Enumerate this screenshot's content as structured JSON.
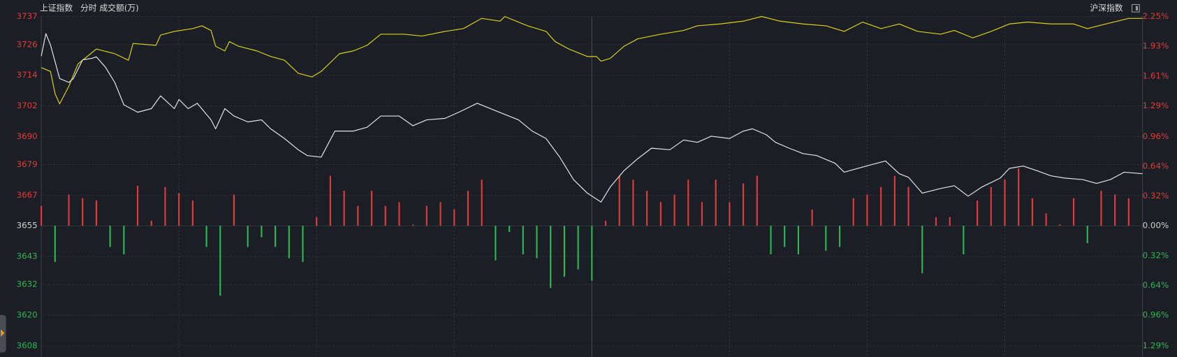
{
  "chart_data": {
    "type": "line",
    "title": "上证指数",
    "subtitle": "分时 成交额(万)",
    "index_label": "沪深指数",
    "xlim": [
      0,
      240
    ],
    "xgrid": [
      30,
      60,
      90,
      150,
      180,
      210
    ],
    "xmid": 120,
    "ylim": [
      3608,
      3737
    ],
    "yticks": [
      3737,
      3726,
      3714,
      3702,
      3690,
      3679,
      3667,
      3655,
      3643,
      3632,
      3620,
      3608
    ],
    "y2lim": [
      -1.29,
      2.25
    ],
    "y2ticks": [
      {
        "value": 2.25,
        "label": "2.25%"
      },
      {
        "value": 1.93,
        "label": "1.93%"
      },
      {
        "value": 1.61,
        "label": "1.61%"
      },
      {
        "value": 1.29,
        "label": "1.29%"
      },
      {
        "value": 0.96,
        "label": "0.96%"
      },
      {
        "value": 0.64,
        "label": "0.64%"
      },
      {
        "value": 0.32,
        "label": "0.32%"
      },
      {
        "value": 0,
        "label": "0.00%"
      },
      {
        "value": -0.32,
        "label": "0.32%"
      },
      {
        "value": -0.64,
        "label": "0.64%"
      },
      {
        "value": -0.96,
        "label": "0.96%"
      },
      {
        "value": -1.29,
        "label": "1.29%"
      }
    ],
    "up_color": "#e03b3b",
    "down_color": "#2fb552",
    "grid": true,
    "series": [
      {
        "color": "#e6e6e6",
        "x": [
          0,
          1,
          2,
          4,
          6,
          7,
          9,
          11,
          12,
          14,
          16,
          18,
          21,
          24,
          26,
          29,
          30,
          32,
          34,
          37,
          38,
          40,
          42,
          45,
          48,
          50,
          53,
          56,
          58,
          61,
          64,
          68,
          71,
          74,
          78,
          81,
          84,
          88,
          91,
          95,
          99,
          104,
          107,
          110,
          113,
          116,
          119,
          122,
          124,
          127,
          130,
          133,
          137,
          140,
          143,
          146,
          150,
          153,
          155,
          158,
          160,
          163,
          166,
          169,
          173,
          175,
          178,
          181,
          184,
          187,
          189,
          192,
          196,
          199,
          202,
          205,
          209,
          211,
          214,
          217,
          220,
          223,
          227,
          230,
          233,
          236,
          240
        ],
        "values": [
          3721.5,
          3730.3,
          3725.9,
          3712.7,
          3711.2,
          3712.7,
          3720.0,
          3720.6,
          3721.2,
          3717.1,
          3711.2,
          3702.4,
          3699.5,
          3700.9,
          3705.9,
          3700.9,
          3704.5,
          3700.9,
          3703.0,
          3696.5,
          3693.0,
          3700.9,
          3698.0,
          3695.7,
          3696.5,
          3693.0,
          3689.2,
          3684.8,
          3682.5,
          3681.9,
          3692.1,
          3692.1,
          3693.6,
          3698.0,
          3698.0,
          3694.2,
          3696.5,
          3697.1,
          3699.5,
          3703.0,
          3700.1,
          3696.5,
          3692.1,
          3689.2,
          3681.9,
          3673.1,
          3667.8,
          3664.3,
          3670.2,
          3676.6,
          3681.3,
          3685.4,
          3684.8,
          3688.6,
          3687.7,
          3690.1,
          3689.2,
          3692.1,
          3693.0,
          3690.7,
          3687.7,
          3685.4,
          3683.3,
          3682.5,
          3679.5,
          3676.0,
          3677.5,
          3679.0,
          3680.4,
          3675.4,
          3674.0,
          3667.8,
          3669.6,
          3670.7,
          3666.6,
          3670.2,
          3673.7,
          3677.5,
          3678.4,
          3676.6,
          3674.6,
          3673.7,
          3673.1,
          3671.6,
          3673.1,
          3676.0,
          3675.4
        ]
      },
      {
        "color": "#d9d21a",
        "axis": "y2",
        "x": [
          0,
          2,
          3,
          4,
          6,
          8,
          10,
          12,
          16,
          19,
          20,
          25,
          26,
          29,
          33,
          35,
          37,
          38,
          40,
          41,
          43,
          47,
          50,
          53,
          56,
          59,
          61,
          65,
          68,
          71,
          74,
          79,
          83,
          88,
          92,
          96,
          100,
          101,
          106,
          110,
          112,
          115,
          119,
          121,
          122,
          124,
          127,
          130,
          135,
          140,
          143,
          148,
          153,
          157,
          161,
          166,
          171,
          175,
          179,
          183,
          187,
          191,
          196,
          199,
          203,
          207,
          211,
          215,
          220,
          225,
          228,
          232,
          237,
          240
        ],
        "values": [
          1.7,
          1.66,
          1.42,
          1.31,
          1.5,
          1.74,
          1.82,
          1.9,
          1.85,
          1.78,
          1.96,
          1.94,
          2.05,
          2.09,
          2.12,
          2.15,
          2.1,
          1.93,
          1.88,
          1.98,
          1.93,
          1.88,
          1.82,
          1.78,
          1.64,
          1.6,
          1.66,
          1.85,
          1.88,
          1.94,
          2.06,
          2.06,
          2.04,
          2.09,
          2.12,
          2.23,
          2.2,
          2.25,
          2.15,
          2.09,
          1.98,
          1.9,
          1.82,
          1.82,
          1.77,
          1.8,
          1.93,
          2.01,
          2.06,
          2.1,
          2.15,
          2.17,
          2.2,
          2.25,
          2.2,
          2.17,
          2.15,
          2.09,
          2.19,
          2.12,
          2.17,
          2.09,
          2.06,
          2.1,
          2.02,
          2.09,
          2.17,
          2.19,
          2.17,
          2.17,
          2.12,
          2.17,
          2.23,
          2.23
        ]
      }
    ],
    "bars": {
      "base": 3655,
      "x": [
        0,
        3,
        6,
        9,
        12,
        15,
        18,
        21,
        24,
        27,
        30,
        33,
        36,
        39,
        42,
        45,
        48,
        51,
        54,
        57,
        60,
        63,
        66,
        69,
        72,
        75,
        78,
        81,
        84,
        87,
        90,
        93,
        96,
        99,
        102,
        105,
        108,
        111,
        114,
        117,
        120,
        123,
        126,
        129,
        132,
        135,
        138,
        141,
        144,
        147,
        150,
        153,
        156,
        159,
        162,
        165,
        168,
        171,
        174,
        177,
        180,
        183,
        186,
        189,
        192,
        195,
        198,
        201,
        204,
        207,
        210,
        213,
        216,
        219,
        222,
        225,
        228,
        231,
        234,
        237
      ],
      "values": [
        3662.8,
        3640.8,
        3667.2,
        3665.8,
        3664.9,
        3646.7,
        3643.8,
        3670.7,
        3657.0,
        3670.2,
        3667.8,
        3664.9,
        3646.7,
        3627.6,
        3667.2,
        3646.7,
        3650.5,
        3646.7,
        3642.3,
        3640.8,
        3658.4,
        3674.6,
        3668.7,
        3662.8,
        3668.7,
        3662.8,
        3664.3,
        3655.5,
        3662.8,
        3664.3,
        3661.4,
        3668.7,
        3673.1,
        3641.4,
        3652.6,
        3643.8,
        3642.3,
        3630.6,
        3635.0,
        3637.9,
        3633.5,
        3657.0,
        3674.6,
        3673.1,
        3668.7,
        3664.3,
        3667.2,
        3673.1,
        3664.3,
        3673.1,
        3664.3,
        3671.6,
        3674.6,
        3643.8,
        3646.7,
        3643.8,
        3661.4,
        3645.2,
        3646.7,
        3665.8,
        3667.2,
        3670.2,
        3674.6,
        3670.2,
        3636.4,
        3658.4,
        3658.4,
        3643.8,
        3664.9,
        3670.2,
        3673.1,
        3677.5,
        3665.8,
        3659.9,
        3655.5,
        3665.8,
        3648.2,
        3668.7,
        3667.2,
        3665.8
      ]
    }
  }
}
